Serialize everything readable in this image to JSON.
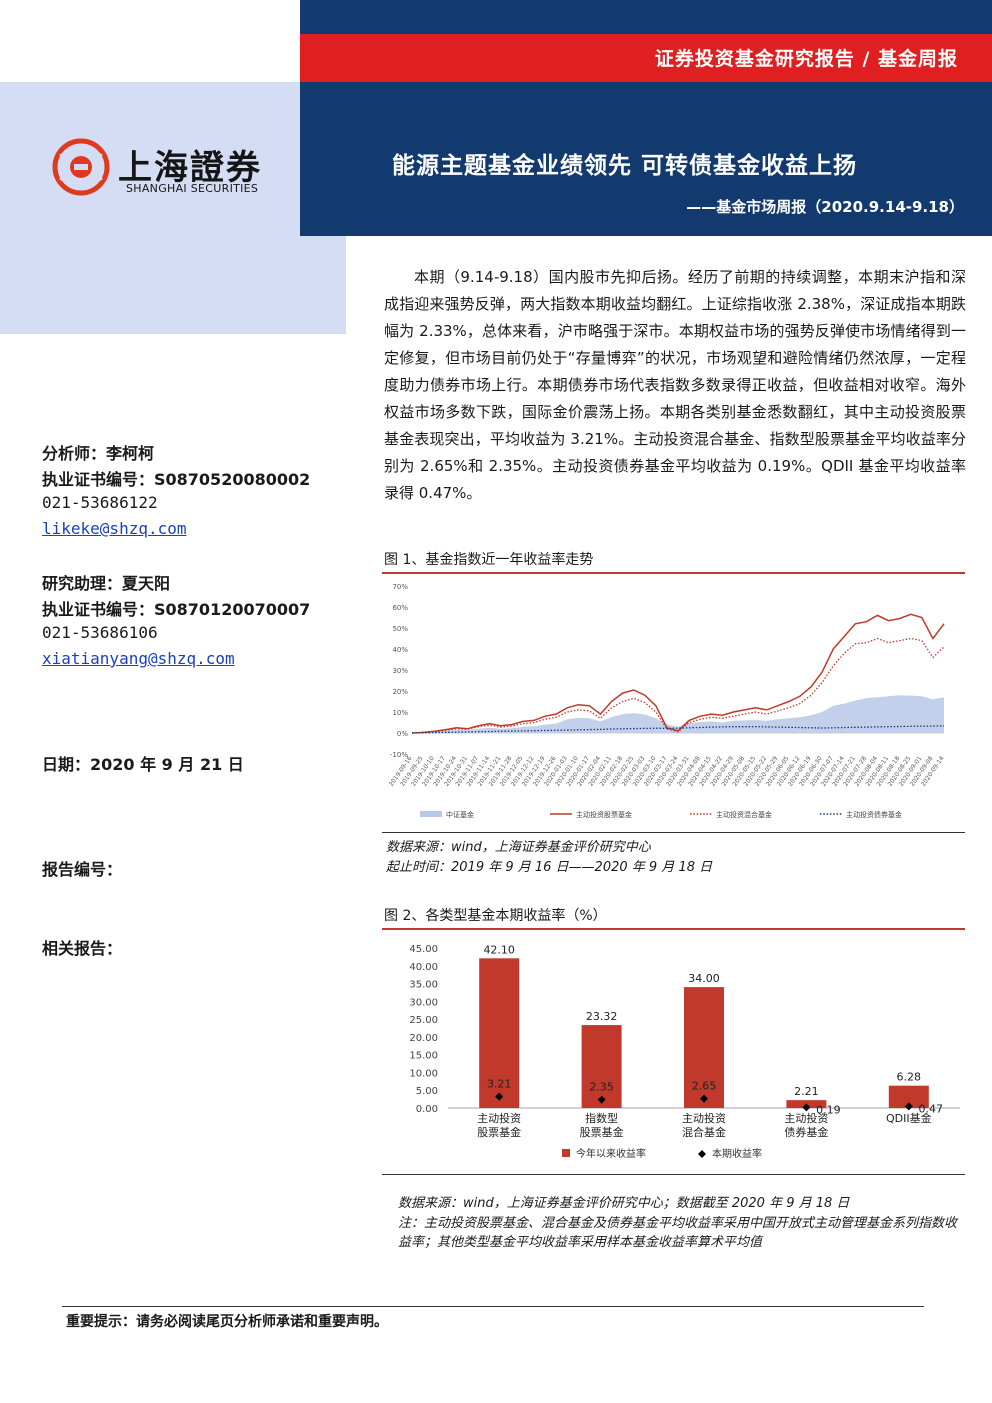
{
  "header": {
    "report_type": "证券投资基金研究报告 / 基金周报",
    "title": "能源主题基金业绩领先 可转债基金收益上扬",
    "subtitle": "——基金市场周报（2020.9.14-9.18）"
  },
  "logo": {
    "name_cn": "上海證券",
    "name_en": "SHANGHAI SECURITIES"
  },
  "colors": {
    "navy": "#123a6e",
    "red": "#e02020",
    "light_blue": "#d5ddf5",
    "bar_red": "#c0392b"
  },
  "sidebar": {
    "analyst": "分析师：李柯柯",
    "analyst_cert": "执业证书编号：S0870520080002",
    "analyst_phone": "021-53686122",
    "analyst_email": "likeke@shzq.com",
    "assistant": "研究助理：夏天阳",
    "assistant_cert": "执业证书编号：S0870120070007",
    "assistant_phone": "021-53686106",
    "assistant_email": "xiatianyang@shzq.com",
    "date": "日期：2020 年 9 月 21 日",
    "report_no": "报告编号：",
    "related": "相关报告："
  },
  "body": {
    "paragraph": "本期（9.14-9.18）国内股市先抑后扬。经历了前期的持续调整，本期末沪指和深成指迎来强势反弹，两大指数本期收益均翻红。上证综指收涨 2.38%，深证成指本期跌幅为 2.33%，总体来看，沪市略强于深市。本期权益市场的强势反弹使市场情绪得到一定修复，但市场目前仍处于“存量博弈”的状况，市场观望和避险情绪仍然浓厚，一定程度助力债券市场上行。本期债券市场代表指数多数录得正收益，但收益相对收窄。海外权益市场多数下跌，国际金价震荡上扬。本期各类别基金悉数翻红，其中主动投资股票基金表现突出，平均收益为 3.21%。主动投资混合基金、指数型股票基金平均收益率分别为 2.65%和 2.35%。主动投资债券基金平均收益为 0.19%。QDII 基金平均收益率录得 0.47%。"
  },
  "figure1": {
    "caption": "图 1、基金指数近一年收益率走势",
    "source": "数据来源：wind，上海证券基金评价研究中心",
    "period": "起止时间：2019 年 9 月 16 日——2020 年 9 月 18 日"
  },
  "figure2": {
    "caption": "图 2、各类型基金本期收益率（%）",
    "source": "数据来源：wind，上海证券基金评价研究中心；数据截至 2020 年 9 月 18 日",
    "note": "注：主动投资股票基金、混合基金及债券基金平均收益率采用中国开放式主动管理基金系列指数收益率；其他类型基金平均收益率采用样本基金收益率算术平均值"
  },
  "chart_data": [
    {
      "type": "line",
      "title": "",
      "y_ticks": [
        "70%",
        "60%",
        "50%",
        "40%",
        "30%",
        "20%",
        "10%",
        "0%",
        "-10%"
      ],
      "ylim": [
        -10,
        70
      ],
      "x_tick_labels": [
        "2019-09-16",
        "2019-09-25",
        "2019-10-10",
        "2019-10-17",
        "2019-10-24",
        "2019-10-31",
        "2019-11-07",
        "2019-11-14",
        "2019-11-21",
        "2019-11-28",
        "2019-12-05",
        "2019-12-12",
        "2019-12-19",
        "2019-12-26",
        "2020-01-03",
        "2020-01-10",
        "2020-01-17",
        "2020-02-04",
        "2020-02-11",
        "2020-02-18",
        "2020-02-25",
        "2020-03-03",
        "2020-03-10",
        "2020-03-17",
        "2020-03-24",
        "2020-03-31",
        "2020-04-08",
        "2020-04-15",
        "2020-04-22",
        "2020-04-29",
        "2020-05-08",
        "2020-05-15",
        "2020-05-22",
        "2020-05-29",
        "2020-06-05",
        "2020-06-12",
        "2020-06-19",
        "2020-06-30",
        "2020-07-07",
        "2020-07-14",
        "2020-07-21",
        "2020-07-28",
        "2020-08-04",
        "2020-08-11",
        "2020-08-18",
        "2020-08-25",
        "2020-09-01",
        "2020-09-08",
        "2020-09-14"
      ],
      "series": [
        {
          "name": "中证基金",
          "style": "area",
          "color": "#b8c8e8",
          "values": [
            0,
            0.2,
            0.5,
            1.0,
            1.5,
            1.3,
            2.0,
            2.5,
            2.0,
            2.3,
            3.0,
            3.2,
            4.0,
            4.5,
            6.5,
            7.2,
            7.0,
            5.5,
            7.5,
            9.0,
            9.5,
            8.8,
            7.0,
            4.2,
            3.0,
            4.8,
            5.2,
            5.5,
            5.0,
            5.8,
            6.0,
            6.2,
            5.8,
            6.5,
            7.0,
            7.5,
            8.5,
            10.0,
            13.0,
            14.0,
            15.5,
            16.5,
            17.0,
            17.5,
            18.0,
            17.8,
            17.5,
            16.0,
            17.0
          ]
        },
        {
          "name": "主动投资股票基金",
          "style": "solid",
          "color": "#c0392b",
          "values": [
            0,
            0.3,
            0.8,
            1.5,
            2.5,
            2.0,
            3.5,
            4.5,
            3.5,
            4.0,
            5.5,
            6.0,
            8.0,
            9.0,
            12.0,
            13.5,
            13.0,
            9.0,
            15.0,
            19.0,
            20.5,
            18.0,
            13.0,
            2.5,
            1.0,
            6.0,
            8.0,
            9.0,
            8.5,
            10.0,
            11.0,
            12.0,
            11.0,
            13.0,
            15.0,
            17.5,
            22.0,
            29.0,
            40.0,
            46.0,
            52.0,
            53.0,
            56.0,
            53.5,
            54.5,
            56.5,
            55.0,
            45.0,
            52.0
          ]
        },
        {
          "name": "主动投资混合基金",
          "style": "dotted",
          "color": "#c0392b",
          "values": [
            0,
            0.2,
            0.6,
            1.2,
            2.0,
            1.7,
            3.0,
            3.7,
            2.8,
            3.3,
            4.5,
            5.0,
            6.5,
            7.5,
            10.0,
            11.0,
            10.5,
            7.0,
            12.0,
            15.0,
            16.5,
            14.5,
            10.0,
            2.0,
            0.5,
            5.0,
            6.5,
            7.5,
            7.0,
            8.0,
            9.0,
            10.0,
            9.0,
            10.5,
            12.0,
            14.0,
            18.0,
            24.0,
            32.0,
            38.0,
            42.5,
            43.0,
            45.0,
            43.0,
            44.0,
            45.0,
            44.0,
            36.0,
            41.0
          ]
        },
        {
          "name": "主动投资债券基金",
          "style": "dotted",
          "color": "#123a6e",
          "values": [
            0,
            0.1,
            0.2,
            0.3,
            0.4,
            0.5,
            0.6,
            0.7,
            0.8,
            0.9,
            1.0,
            1.1,
            1.2,
            1.3,
            1.4,
            1.5,
            1.6,
            1.7,
            1.9,
            2.0,
            2.1,
            2.2,
            2.3,
            2.2,
            2.3,
            2.5,
            2.6,
            2.8,
            2.9,
            3.0,
            3.0,
            3.0,
            2.9,
            2.8,
            2.7,
            2.6,
            2.5,
            2.4,
            2.5,
            2.6,
            2.7,
            2.8,
            2.9,
            3.0,
            3.1,
            3.2,
            3.3,
            3.3,
            3.4
          ]
        }
      ]
    },
    {
      "type": "bar",
      "title": "",
      "y_ticks": [
        "45.00",
        "40.00",
        "35.00",
        "30.00",
        "25.00",
        "20.00",
        "15.00",
        "10.00",
        "5.00",
        "0.00"
      ],
      "ylim": [
        0,
        45
      ],
      "categories": [
        [
          "主动投资",
          "股票基金"
        ],
        [
          "指数型",
          "股票基金"
        ],
        [
          "主动投资",
          "混合基金"
        ],
        [
          "主动投资",
          "债券基金"
        ],
        [
          "QDII基金"
        ]
      ],
      "series": [
        {
          "name": "今年以来收益率",
          "type": "bar",
          "color": "#c0392b",
          "values": [
            42.1,
            23.32,
            34.0,
            2.21,
            6.28
          ],
          "labels": [
            "42.10",
            "23.32",
            "34.00",
            "2.21",
            "6.28"
          ]
        },
        {
          "name": "本期收益率",
          "type": "marker",
          "color": "#000000",
          "values": [
            3.21,
            2.35,
            2.65,
            0.19,
            0.47
          ],
          "labels": [
            "3.21",
            "2.35",
            "2.65",
            "0.19",
            "0.47"
          ]
        }
      ]
    }
  ]
}
